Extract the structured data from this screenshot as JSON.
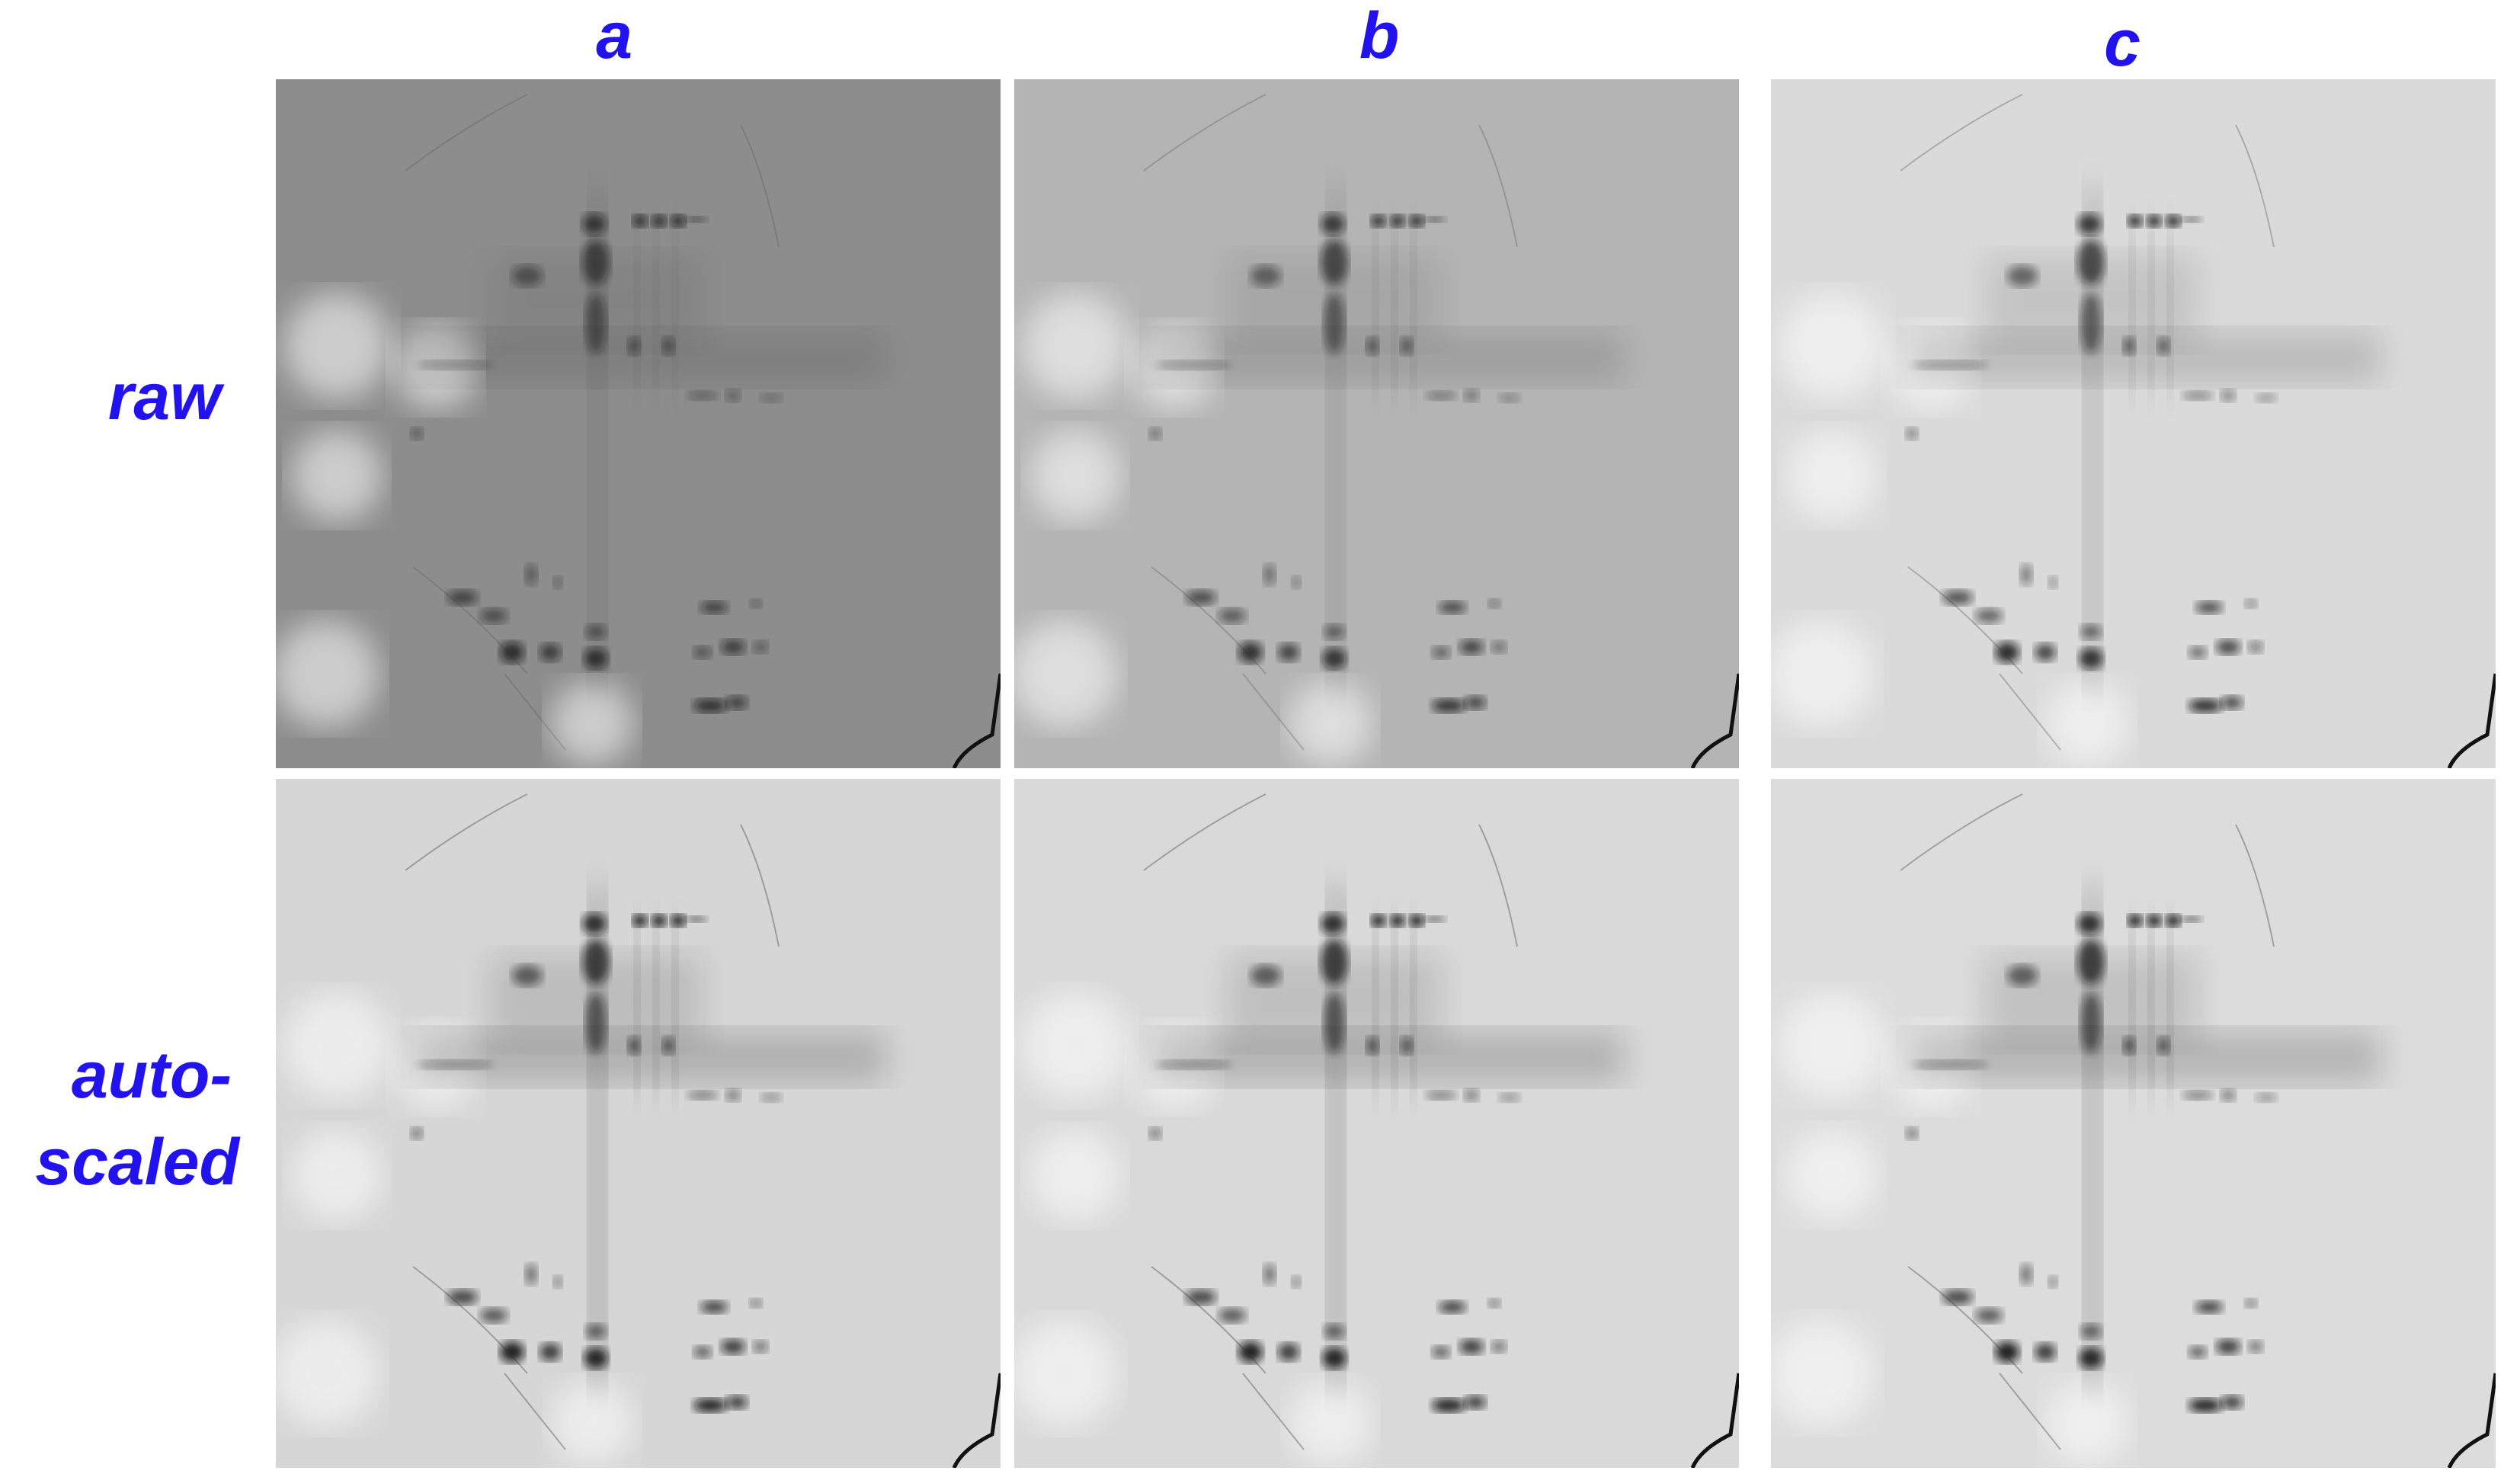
{
  "label_color": "#2213ee",
  "columns": [
    "a",
    "b",
    "c"
  ],
  "rows": [
    "raw",
    "auto-",
    "scaled"
  ],
  "panels": [
    {
      "row": 0,
      "col": 0,
      "bg": "#8d8d8d",
      "contrast": 0.55
    },
    {
      "row": 0,
      "col": 1,
      "bg": "#b4b4b4",
      "contrast": 0.65
    },
    {
      "row": 0,
      "col": 2,
      "bg": "#dadada",
      "contrast": 0.8
    },
    {
      "row": 1,
      "col": 0,
      "bg": "#d6d6d6",
      "contrast": 1.0
    },
    {
      "row": 1,
      "col": 1,
      "bg": "#d9d9d9",
      "contrast": 1.0
    },
    {
      "row": 1,
      "col": 2,
      "bg": "#dcdcdc",
      "contrast": 1.0
    }
  ]
}
